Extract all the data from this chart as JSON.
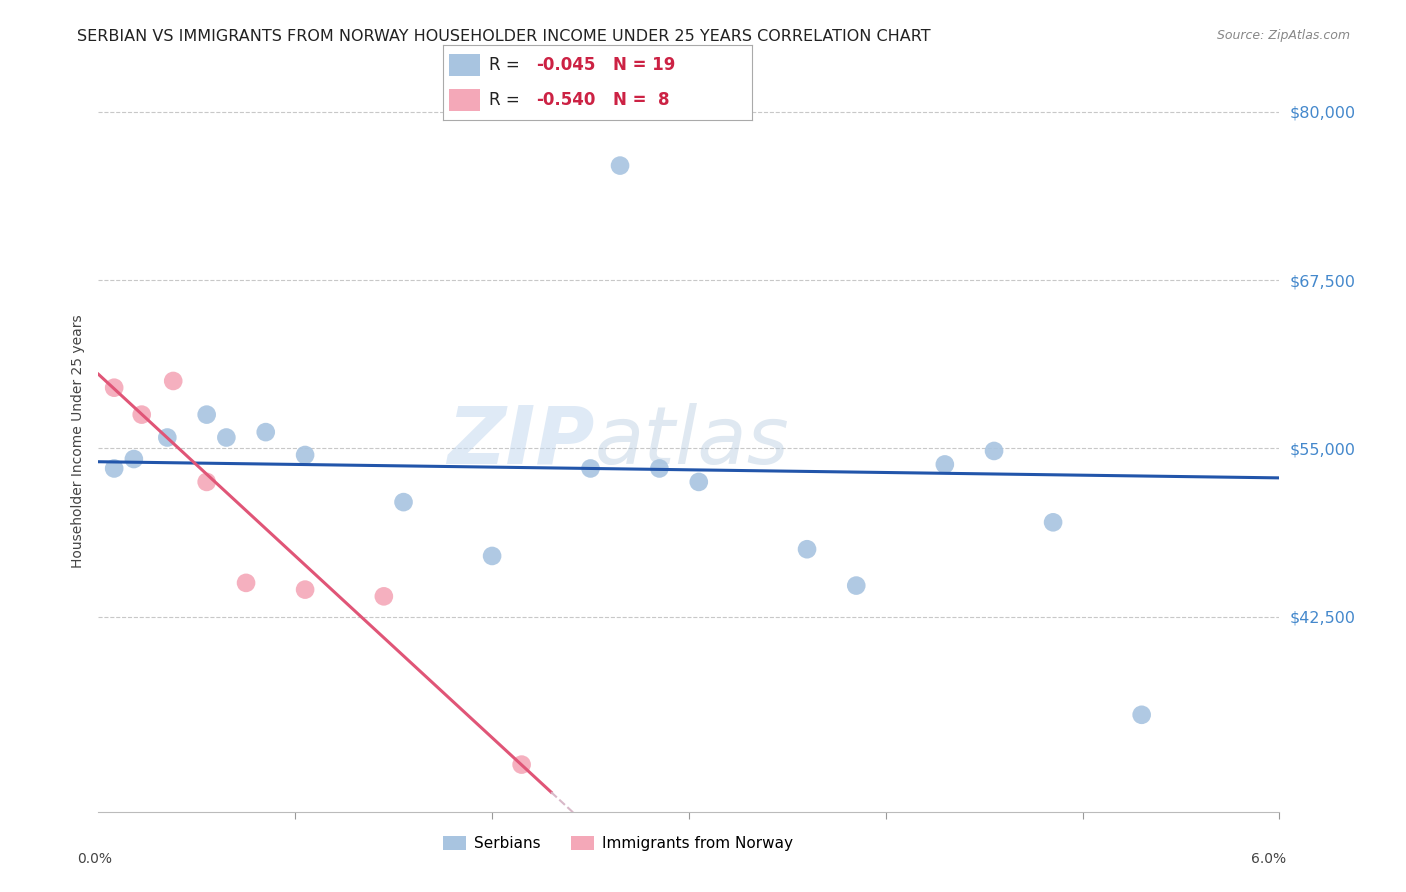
{
  "title": "SERBIAN VS IMMIGRANTS FROM NORWAY HOUSEHOLDER INCOME UNDER 25 YEARS CORRELATION CHART",
  "source": "Source: ZipAtlas.com",
  "ylabel": "Householder Income Under 25 years",
  "right_ytick_labels": [
    "$80,000",
    "$67,500",
    "$55,000",
    "$42,500"
  ],
  "right_ytick_values": [
    80000,
    67500,
    55000,
    42500
  ],
  "xlim": [
    0.0,
    6.0
  ],
  "ylim": [
    28000,
    83000
  ],
  "watermark_zip": "ZIP",
  "watermark_atlas": "atlas",
  "legend_r1": "R = ",
  "legend_v1": "-0.045",
  "legend_n1": "N = 19",
  "legend_r2": "R = ",
  "legend_v2": "-0.540",
  "legend_n2": "N =  8",
  "serbian_x": [
    0.08,
    0.18,
    0.35,
    0.55,
    0.65,
    0.85,
    1.05,
    1.55,
    2.0,
    2.5,
    2.65,
    2.85,
    3.05,
    3.6,
    3.85,
    4.3,
    4.55,
    4.85,
    5.3
  ],
  "serbian_y": [
    53500,
    54200,
    55800,
    57500,
    55800,
    56200,
    54500,
    51000,
    47000,
    53500,
    76000,
    53500,
    52500,
    47500,
    44800,
    53800,
    54800,
    49500,
    35200
  ],
  "norway_x": [
    0.08,
    0.22,
    0.38,
    0.55,
    0.75,
    1.05,
    1.45,
    2.15
  ],
  "norway_y": [
    59500,
    57500,
    60000,
    52500,
    45000,
    44500,
    44000,
    31500
  ],
  "serbian_color": "#a8c4e0",
  "norway_color": "#f4a8b8",
  "trend_serbian_color": "#2255aa",
  "trend_norway_color": "#e05577",
  "trend_norway_dashed_color": "#d8b8c8",
  "background_color": "#ffffff",
  "grid_color": "#c8c8c8",
  "title_color": "#222222",
  "right_label_color": "#4488cc",
  "source_color": "#888888",
  "title_fontsize": 11.5,
  "axis_label_fontsize": 10,
  "tick_label_fontsize": 10,
  "legend_fontsize": 12,
  "scatter_size": 180
}
